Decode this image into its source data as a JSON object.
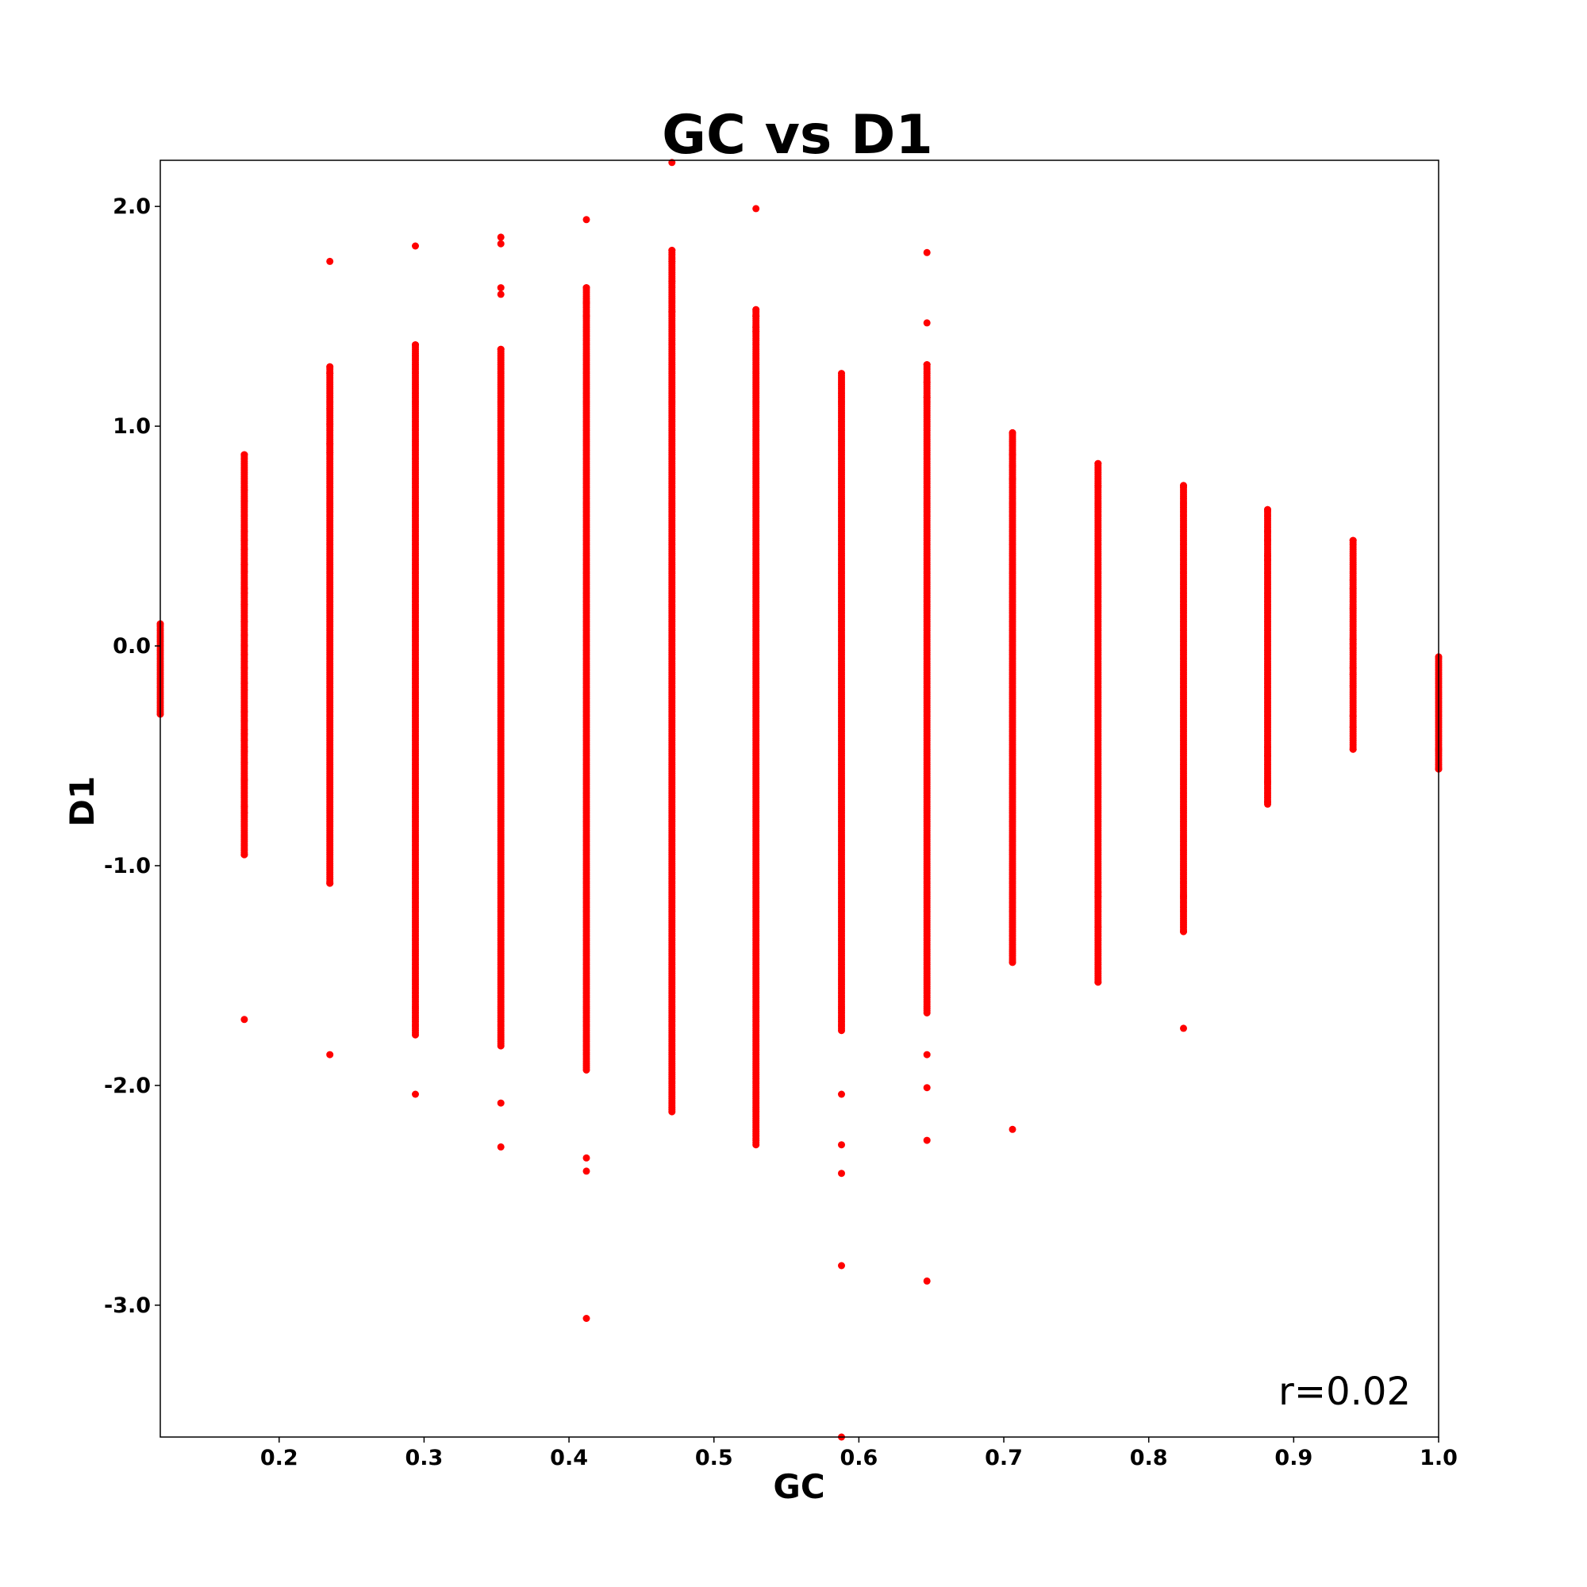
{
  "chart_data": {
    "type": "scatter",
    "title": "GC vs D1",
    "xlabel": "GC",
    "ylabel": "D1",
    "xlim": [
      0.118,
      1.0
    ],
    "ylim": [
      -3.6,
      2.21
    ],
    "xticks": [
      0.2,
      0.3,
      0.4,
      0.5,
      0.6,
      0.7,
      0.8,
      0.9,
      1.0
    ],
    "xtick_labels": [
      "0.2",
      "0.3",
      "0.4",
      "0.5",
      "0.6",
      "0.7",
      "0.8",
      "0.9",
      "1.0"
    ],
    "yticks": [
      2.0,
      1.0,
      0.0,
      -1.0,
      -2.0,
      -3.0
    ],
    "ytick_labels": [
      "2.0",
      "1.0",
      "0.0",
      "-1.0",
      "-2.0",
      "-3.0"
    ],
    "grid": false,
    "annotation": "r=0.02",
    "annotation_position": "bottom-right",
    "point_color": "#ff0000",
    "columns": [
      {
        "x": 0.118,
        "min": -0.31,
        "max": 0.1,
        "points": [
          0.1,
          -0.31
        ]
      },
      {
        "x": 0.176,
        "min": -0.95,
        "max": 0.87,
        "points": [
          0.87,
          0.71,
          0.66,
          0.52,
          0.48,
          0.44,
          0.37,
          0.34,
          0.26,
          0.24,
          0.19,
          0.11,
          0.05,
          0.0,
          -0.04,
          -0.07,
          -0.1,
          -0.17,
          -0.2,
          -0.3,
          -0.34,
          -0.38,
          -0.4,
          -0.43,
          -0.46,
          -0.48,
          -0.53,
          -0.61,
          -0.73,
          -0.76,
          -0.95,
          -1.7
        ]
      },
      {
        "x": 0.235,
        "min": -1.08,
        "max": 1.27,
        "points": [
          1.75,
          1.27,
          1.24,
          1.08,
          1.01,
          0.92,
          0.88,
          -1.08,
          -1.86
        ]
      },
      {
        "x": 0.294,
        "min": -1.77,
        "max": 1.37,
        "points": [
          1.82,
          1.37,
          -2.04
        ]
      },
      {
        "x": 0.353,
        "min": -1.82,
        "max": 1.35,
        "points": [
          1.86,
          1.83,
          1.63,
          1.6,
          1.35,
          -2.08,
          -2.28
        ]
      },
      {
        "x": 0.412,
        "min": -1.93,
        "max": 1.63,
        "points": [
          1.94,
          1.63,
          1.56,
          1.5,
          -2.33,
          -2.39,
          -3.06
        ]
      },
      {
        "x": 0.471,
        "min": -2.12,
        "max": 1.8,
        "points": [
          2.2,
          1.8,
          1.75,
          1.66,
          1.52
        ]
      },
      {
        "x": 0.529,
        "min": -2.27,
        "max": 1.53,
        "points": [
          1.99,
          1.53,
          1.5,
          1.45,
          1.43
        ]
      },
      {
        "x": 0.588,
        "min": -1.75,
        "max": 1.24,
        "points": [
          -2.04,
          -2.27,
          -2.4,
          -2.82,
          -3.6
        ]
      },
      {
        "x": 0.647,
        "min": -1.67,
        "max": 1.28,
        "points": [
          1.79,
          1.47,
          1.28,
          1.2,
          1.13,
          -1.86,
          -2.01,
          -2.25,
          -2.89
        ]
      },
      {
        "x": 0.706,
        "min": -1.44,
        "max": 0.97,
        "points": [
          0.97,
          0.87,
          0.82,
          0.76,
          -1.44,
          -2.2
        ]
      },
      {
        "x": 0.765,
        "min": -1.53,
        "max": 0.83,
        "points": [
          0.83,
          0.73,
          -1.12,
          -1.14,
          -1.28,
          -1.53
        ]
      },
      {
        "x": 0.824,
        "min": -1.3,
        "max": 0.73,
        "points": [
          0.73,
          -1.14,
          -1.3,
          -1.74
        ]
      },
      {
        "x": 0.882,
        "min": -0.72,
        "max": 0.62,
        "points": [
          0.62,
          0.52,
          0.48,
          0.41,
          0.39,
          -0.46,
          -0.5,
          -0.62,
          -0.71
        ]
      },
      {
        "x": 0.941,
        "min": -0.47,
        "max": 0.48,
        "points": [
          0.48,
          0.3,
          0.26,
          0.17,
          0.03,
          0.01,
          -0.01,
          -0.1,
          -0.13,
          -0.18,
          -0.32,
          -0.37,
          -0.47
        ]
      },
      {
        "x": 1.0,
        "min": -0.56,
        "max": -0.05,
        "points": [
          -0.05,
          -0.47,
          -0.56
        ]
      }
    ]
  }
}
